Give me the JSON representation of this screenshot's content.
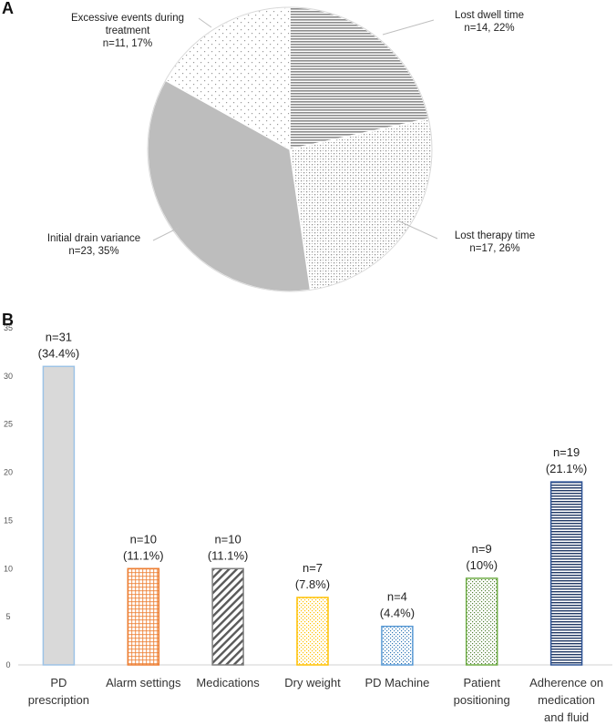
{
  "panels": {
    "a": "A",
    "b": "B"
  },
  "chart_data": [
    {
      "type": "pie",
      "slices": [
        {
          "label_lines": [
            "Lost dwell time"
          ],
          "value_text": "n=14, 22%",
          "value": 14,
          "percent": 22,
          "pattern": "hlines"
        },
        {
          "label_lines": [
            "Lost therapy time"
          ],
          "value_text": "n=17, 26%",
          "value": 17,
          "percent": 26,
          "pattern": "dots"
        },
        {
          "label_lines": [
            "Initial drain variance"
          ],
          "value_text": "n=23, 35%",
          "value": 23,
          "percent": 35,
          "pattern": "solid"
        },
        {
          "label_lines": [
            "Excessive events during",
            "treatment"
          ],
          "value_text": "n=11, 17%",
          "value": 11,
          "percent": 17,
          "pattern": "sparse-dots"
        }
      ],
      "colors": {
        "fill": "#bdbdbd",
        "stroke": "#ffffff",
        "outline": "#d9d9d9"
      }
    },
    {
      "type": "bar",
      "categories": [
        [
          "PD",
          "prescription"
        ],
        [
          "Alarm settings"
        ],
        [
          "Medications"
        ],
        [
          "Dry weight"
        ],
        [
          "PD Machine"
        ],
        [
          "Patient",
          "positioning"
        ],
        [
          "Adherence on",
          "medication",
          "and fluid"
        ]
      ],
      "values": [
        31,
        10,
        10,
        7,
        4,
        9,
        19
      ],
      "data_labels": [
        [
          "n=31",
          "(34.4%)"
        ],
        [
          "n=10",
          "(11.1%)"
        ],
        [
          "n=10",
          "(11.1%)"
        ],
        [
          "n=7",
          "(7.8%)"
        ],
        [
          "n=4",
          "(4.4%)"
        ],
        [
          "n=9",
          "(10%)"
        ],
        [
          "n=19",
          "(21.1%)"
        ]
      ],
      "bar_styles": [
        {
          "pattern": "solid",
          "color": "#d9d9d9",
          "border": "#9dc3e6"
        },
        {
          "pattern": "grid",
          "color": "#ed7d31",
          "border": "#ed7d31"
        },
        {
          "pattern": "diag",
          "color": "#595959",
          "border": "#7f7f7f"
        },
        {
          "pattern": "dots",
          "color": "#ffc000",
          "border": "#ffc000"
        },
        {
          "pattern": "dots",
          "color": "#2e75b6",
          "border": "#5b9bd5"
        },
        {
          "pattern": "dots",
          "color": "#548235",
          "border": "#70ad47"
        },
        {
          "pattern": "hlines",
          "color": "#203864",
          "border": "#2f5597"
        }
      ],
      "yticks": [
        0,
        5,
        10,
        15,
        20,
        25,
        30,
        35
      ],
      "ylim": [
        0,
        35
      ]
    }
  ]
}
